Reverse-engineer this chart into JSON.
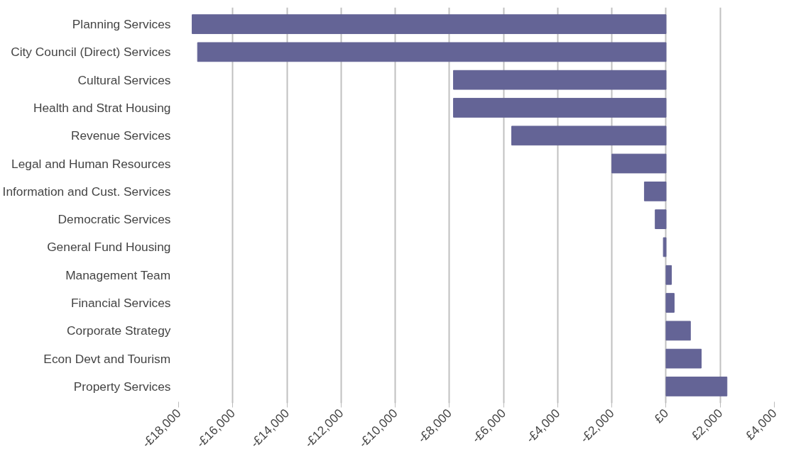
{
  "chart_data": {
    "type": "bar",
    "orientation": "horizontal",
    "categories": [
      "Planning Services",
      "City Council (Direct) Services",
      "Cultural Services",
      "Health and Strat Housing",
      "Revenue Services",
      "Legal and Human Resources",
      "Information and Cust. Services",
      "Democratic Services",
      "General Fund Housing",
      "Management Team",
      "Financial Services",
      "Corporate Strategy",
      "Econ Devt and Tourism",
      "Property Services"
    ],
    "values": [
      -17500,
      -17300,
      -7850,
      -7850,
      -5700,
      -2000,
      -800,
      -400,
      -100,
      200,
      300,
      900,
      1300,
      2250
    ],
    "color": "#646496",
    "xlim": [
      -18000,
      4000
    ],
    "xticks": [
      {
        "value": -18000,
        "label": "-£18,000"
      },
      {
        "value": -16000,
        "label": "-£16,000"
      },
      {
        "value": -14000,
        "label": "-£14,000"
      },
      {
        "value": -12000,
        "label": "-£12,000"
      },
      {
        "value": -10000,
        "label": "-£10,000"
      },
      {
        "value": -8000,
        "label": "-£8,000"
      },
      {
        "value": -6000,
        "label": "-£6,000"
      },
      {
        "value": -4000,
        "label": "-£4,000"
      },
      {
        "value": -2000,
        "label": "-£2,000"
      },
      {
        "value": 0,
        "label": "£0"
      },
      {
        "value": 2000,
        "label": "£2,000"
      },
      {
        "value": 4000,
        "label": "£4,000"
      }
    ],
    "grid": "x"
  }
}
